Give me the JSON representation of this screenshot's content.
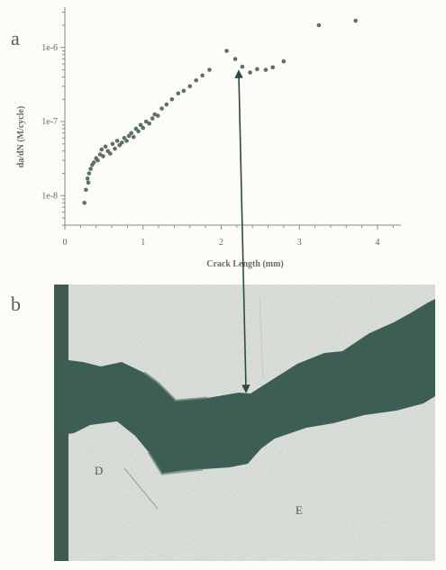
{
  "panels": {
    "a": "a",
    "b": "b"
  },
  "photo_labels": {
    "left": "D",
    "right": "E"
  },
  "colors": {
    "marker": "#5c7068",
    "axis": "#8a8a8a",
    "crack": "#3c5e55",
    "arrow": "#2f4a44",
    "paper": "#fbfbf8",
    "specimen": "#e9ece6",
    "bar": "#3f5a52"
  },
  "chart_data": {
    "type": "scatter",
    "title": "",
    "xlabel": "Crack Length (mm)",
    "ylabel": "da/dN (M/cycle)",
    "xlim": [
      0,
      4.3
    ],
    "ylim": [
      4e-09,
      3.5e-06
    ],
    "yscale": "log",
    "x_ticks": [
      0,
      1,
      2,
      3,
      4
    ],
    "x_tick_labels": [
      "0",
      "1",
      "2",
      "3",
      "4"
    ],
    "y_ticks": [
      1e-08,
      1e-07,
      1e-06
    ],
    "y_tick_labels": [
      "1e-8",
      "1e-7",
      "1e-6"
    ],
    "grid": false,
    "series": [
      {
        "x": [
          0.25,
          0.27,
          0.29,
          0.3,
          0.31,
          0.33,
          0.35,
          0.37,
          0.4,
          0.42,
          0.45,
          0.47,
          0.49,
          0.52,
          0.55,
          0.58,
          0.61,
          0.64,
          0.67,
          0.7,
          0.73,
          0.76,
          0.79,
          0.82,
          0.85,
          0.88,
          0.91,
          0.94,
          0.97,
          1.0,
          1.04,
          1.08,
          1.12,
          1.15,
          1.19,
          1.24,
          1.3,
          1.37,
          1.45,
          1.52,
          1.6,
          1.68,
          1.76,
          1.85,
          2.07,
          2.18,
          2.27,
          2.37,
          2.46,
          2.57,
          2.66,
          2.8,
          3.25,
          3.72
        ],
        "y": [
          8e-09,
          1.2e-08,
          1.7e-08,
          1.5e-08,
          2e-08,
          2.3e-08,
          2.6e-08,
          2.8e-08,
          3.2e-08,
          3e-08,
          3.6e-08,
          4.2e-08,
          3.4e-08,
          4.6e-08,
          4e-08,
          3.7e-08,
          5e-08,
          4.3e-08,
          5.5e-08,
          4.8e-08,
          5.2e-08,
          6e-08,
          5.5e-08,
          6.4e-08,
          7e-08,
          6.2e-08,
          8e-08,
          7.4e-08,
          9e-08,
          8.2e-08,
          1e-07,
          9.4e-08,
          1.1e-07,
          1.25e-07,
          1.2e-07,
          1.5e-07,
          1.7e-07,
          2e-07,
          2.4e-07,
          2.6e-07,
          3e-07,
          3.6e-07,
          4.2e-07,
          5e-07,
          9e-07,
          7e-07,
          5.5e-07,
          4.6e-07,
          5.1e-07,
          5e-07,
          5.4e-07,
          6.5e-07,
          2e-06,
          2.3e-06
        ]
      }
    ]
  }
}
